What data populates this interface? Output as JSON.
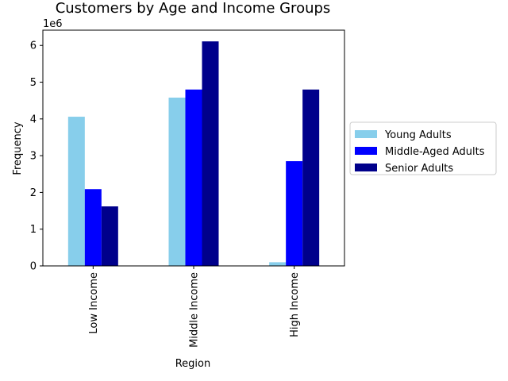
{
  "chart_data": {
    "type": "bar",
    "title": "Customers by Age and Income Groups",
    "xlabel": "Region",
    "ylabel": "Frequency",
    "offset_label": "1e6",
    "categories": [
      "Low Income",
      "Middle Income",
      "High Income"
    ],
    "series": [
      {
        "name": "Young Adults",
        "color": "#87ceeb",
        "values": [
          4060000,
          4580000,
          100000
        ]
      },
      {
        "name": "Middle-Aged Adults",
        "color": "#0000ff",
        "values": [
          2090000,
          4800000,
          2850000
        ]
      },
      {
        "name": "Senior Adults",
        "color": "#00008b",
        "values": [
          1620000,
          6110000,
          4800000
        ]
      }
    ],
    "ylim": [
      0,
      6415500
    ],
    "yticks": [
      0,
      1000000,
      2000000,
      3000000,
      4000000,
      5000000,
      6000000
    ],
    "ytick_labels": [
      "0",
      "1",
      "2",
      "3",
      "4",
      "5",
      "6"
    ],
    "legend_position": "center-right",
    "grid": false
  }
}
